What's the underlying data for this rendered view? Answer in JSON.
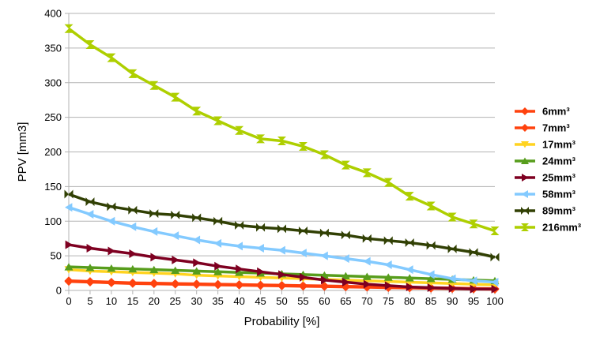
{
  "chart_data": {
    "type": "line",
    "title": "",
    "xlabel": "Probability [%]",
    "ylabel": "PPV [mm3]",
    "xlim": [
      0,
      100
    ],
    "ylim": [
      0,
      400
    ],
    "x_ticks": [
      "0",
      "5",
      "10",
      "15",
      "20",
      "25",
      "30",
      "35",
      "40",
      "45",
      "50",
      "55",
      "60",
      "65",
      "70",
      "75",
      "80",
      "85",
      "90",
      "95",
      "100"
    ],
    "y_ticks": [
      "0",
      "50",
      "100",
      "150",
      "200",
      "250",
      "300",
      "350",
      "400"
    ],
    "grid": "horizontal",
    "legend_position": "right",
    "x": [
      0,
      5,
      10,
      15,
      20,
      25,
      30,
      35,
      40,
      45,
      50,
      55,
      60,
      65,
      70,
      75,
      80,
      85,
      90,
      95,
      100
    ],
    "series": [
      {
        "name": "6mm³",
        "color": "#ff420e",
        "marker": "diamond",
        "values": [
          13,
          12,
          11,
          10,
          9.5,
          9,
          8.5,
          8,
          7.5,
          7,
          6.5,
          6,
          5.5,
          5,
          4.5,
          4,
          3.5,
          3,
          2.5,
          2,
          1.5
        ]
      },
      {
        "name": "7mm³",
        "color": "#ff420e",
        "marker": "diamond",
        "values": [
          14,
          13,
          12,
          11,
          10.5,
          10,
          9.5,
          9,
          8.5,
          8,
          7.5,
          7,
          6.5,
          6,
          5.5,
          5,
          4.5,
          4,
          3.5,
          3,
          2.5
        ]
      },
      {
        "name": "17mm³",
        "color": "#ffd320",
        "marker": "triangle-down",
        "values": [
          30,
          28,
          27,
          26,
          25,
          24,
          22,
          21,
          20,
          19,
          18,
          17,
          16,
          15,
          14,
          13,
          12,
          11,
          10,
          9,
          8
        ]
      },
      {
        "name": "24mm³",
        "color": "#579d1c",
        "marker": "triangle-up",
        "values": [
          34,
          33,
          32,
          31,
          30,
          29,
          28,
          27,
          26,
          25,
          24,
          23,
          22,
          21,
          20,
          19,
          18,
          17,
          16,
          15,
          14
        ]
      },
      {
        "name": "25mm³",
        "color": "#7e0021",
        "marker": "triangle-right",
        "values": [
          66,
          61,
          57,
          53,
          48,
          44,
          40,
          35,
          31,
          27,
          23,
          19,
          15,
          12,
          9,
          7,
          5,
          4,
          3,
          2,
          2
        ]
      },
      {
        "name": "58mm³",
        "color": "#83caff",
        "marker": "triangle-left",
        "values": [
          120,
          110,
          100,
          92,
          85,
          79,
          73,
          68,
          64,
          61,
          58,
          54,
          50,
          46,
          42,
          37,
          30,
          23,
          17,
          14,
          12
        ]
      },
      {
        "name": "89mm³",
        "color": "#314004",
        "marker": "bowtie",
        "values": [
          139,
          128,
          121,
          116,
          111,
          109,
          105,
          100,
          94,
          91,
          89,
          86,
          83,
          80,
          75,
          72,
          69,
          65,
          60,
          55,
          48
        ]
      },
      {
        "name": "216mm³",
        "color": "#aecf00",
        "marker": "hourglass",
        "values": [
          378,
          355,
          336,
          313,
          296,
          279,
          259,
          245,
          231,
          219,
          216,
          208,
          196,
          181,
          170,
          156,
          136,
          122,
          106,
          96,
          86
        ]
      }
    ]
  }
}
